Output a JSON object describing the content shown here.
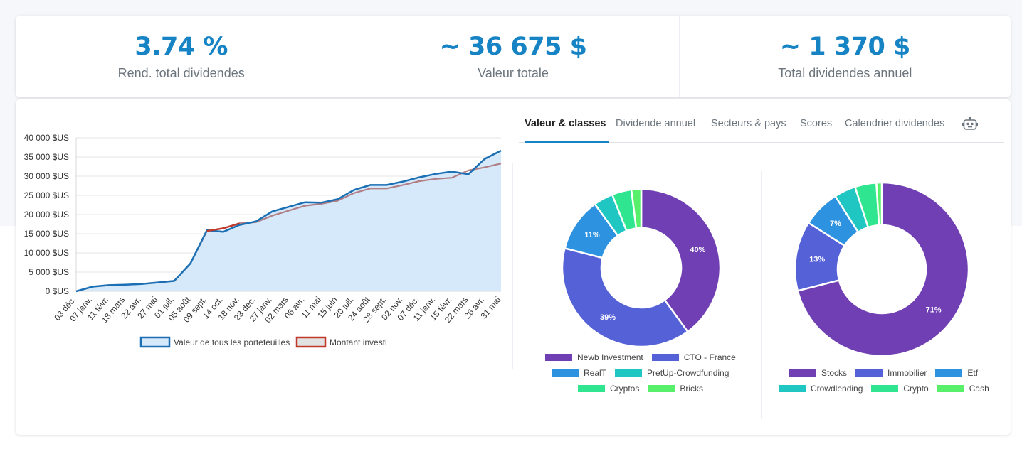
{
  "stats": [
    {
      "value": "3.74 %",
      "label": "Rend. total dividendes"
    },
    {
      "value": "~ 36 675 $",
      "label": "Valeur totale"
    },
    {
      "value": "~ 1 370 $",
      "label": "Total dividendes annuel"
    }
  ],
  "tabs": [
    "Valeur & classes",
    "Dividende annuel",
    "Secteurs & pays",
    "Scores",
    "Calendrier dividendes"
  ],
  "active_tab": "Valeur & classes",
  "robot_icon": "robot-icon",
  "colors": {
    "accent": "#1683c4",
    "portfolio_line": "#1a6fb5",
    "portfolio_fill": "#d6e9fb",
    "invested_line": "#c0392b",
    "invested_fill": "#e2e2e2"
  },
  "chart_data": [
    {
      "type": "area",
      "yticks": [
        "0 $US",
        "5 000 $US",
        "10 000 $US",
        "15 000 $US",
        "20 000 $US",
        "25 000 $US",
        "30 000 $US",
        "35 000 $US",
        "40 000 $US"
      ],
      "ylim": [
        0,
        40000
      ],
      "xticks": [
        "03 déc.",
        "07 janv.",
        "11 févr.",
        "18 mars",
        "22 avr.",
        "27 mai",
        "01 juil.",
        "05 août",
        "09 sept.",
        "14 oct.",
        "18 nov.",
        "23 déc.",
        "27 janv.",
        "02 mars",
        "06 avr.",
        "11 mai",
        "15 juin",
        "20 juil.",
        "24 août",
        "28 sept.",
        "02 nov.",
        "07 déc.",
        "11 janv.",
        "15 févr.",
        "22 mars",
        "26 avr.",
        "31 mai"
      ],
      "series": [
        {
          "name": "Valeur de tous les portefeuilles",
          "values": [
            0,
            1200,
            1600,
            1700,
            1900,
            2300,
            2700,
            7300,
            15900,
            15500,
            17300,
            18200,
            20800,
            22000,
            23200,
            23100,
            24000,
            26400,
            27700,
            27700,
            28600,
            29700,
            30600,
            31200,
            30500,
            34500,
            36675
          ]
        },
        {
          "name": "Montant investi",
          "values": [
            0,
            1200,
            1600,
            1700,
            1900,
            2300,
            2700,
            7300,
            15700,
            16400,
            17700,
            18000,
            19700,
            21000,
            22300,
            22800,
            23600,
            25600,
            26800,
            26800,
            27700,
            28700,
            29300,
            29600,
            31500,
            32300,
            33300
          ]
        }
      ]
    },
    {
      "type": "pie",
      "categories": [
        "Newb Investment",
        "CTO - France",
        "RealT",
        "PretUp-Crowdfunding",
        "Cryptos",
        "Bricks"
      ],
      "values": [
        40,
        39,
        11,
        4,
        4,
        2
      ],
      "labels": [
        "40%",
        "39%",
        "11%",
        "",
        "",
        ""
      ],
      "colors": [
        "#6f3fb3",
        "#5561d6",
        "#2d92e0",
        "#1fc6c2",
        "#2fe58f",
        "#58f06a"
      ]
    },
    {
      "type": "pie",
      "categories": [
        "Stocks",
        "Immobilier",
        "Etf",
        "Crowdlending",
        "Crypto",
        "Cash"
      ],
      "values": [
        71,
        13,
        7,
        4,
        4,
        1
      ],
      "labels": [
        "71%",
        "13%",
        "7%",
        "",
        "",
        ""
      ],
      "colors": [
        "#6f3fb3",
        "#5561d6",
        "#2d92e0",
        "#1fc6c2",
        "#2fe58f",
        "#58f06a"
      ]
    }
  ]
}
